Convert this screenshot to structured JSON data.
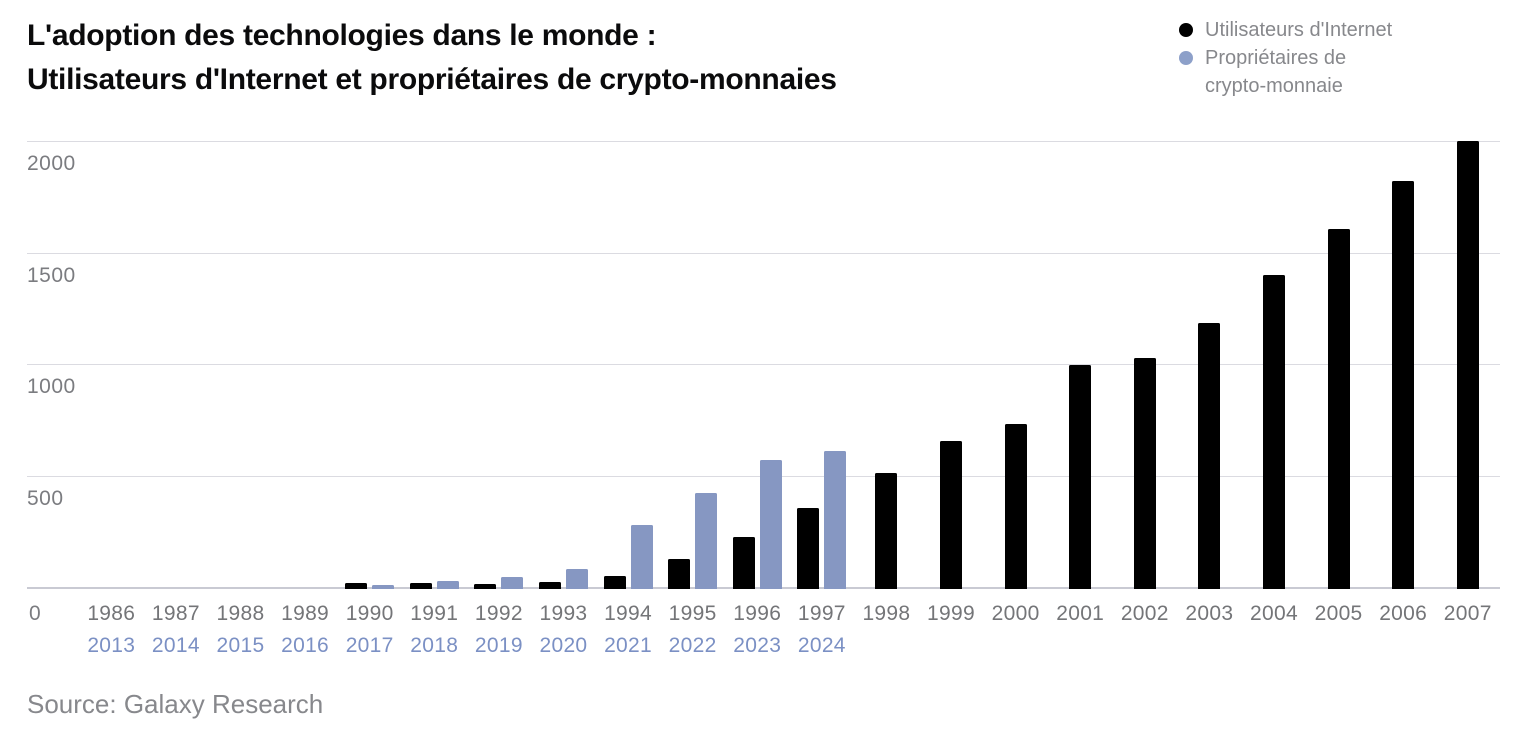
{
  "header": {
    "title": "L'adoption des technologies dans le monde :\nUtilisateurs d'Internet et propriétaires de crypto-monnaies"
  },
  "legend": {
    "items": [
      {
        "label": "Utilisateurs d'Internet",
        "color": "#000000"
      },
      {
        "label": "Propriétaires de\ncrypto-monnaie",
        "color": "#8697c2"
      }
    ]
  },
  "footer": {
    "source": "Source: Galaxy Research"
  },
  "colors": {
    "internet_bar": "#000000",
    "crypto_bar": "#8697c2",
    "crypto_year_labels": "#7b90c4",
    "axis_text": "#747578",
    "gridline": "#dbdbe1"
  },
  "chart_data": {
    "type": "bar",
    "title": "L'adoption des technologies dans le monde : Utilisateurs d'Internet et propriétaires de crypto-monnaies",
    "xlabel": "",
    "ylabel": "",
    "ylim": [
      0,
      2000
    ],
    "y_ticks": [
      0,
      500,
      1000,
      1500,
      2000
    ],
    "zero_label": "0",
    "grid": "horizontal",
    "legend_position": "top-right",
    "x_axis_rows": 2,
    "categories_internet": [
      "1986",
      "1987",
      "1988",
      "1989",
      "1990",
      "1991",
      "1992",
      "1993",
      "1994",
      "1995",
      "1996",
      "1997",
      "1998",
      "1999",
      "2000",
      "2001",
      "2002",
      "2003",
      "2004",
      "2005",
      "2006",
      "2007"
    ],
    "categories_crypto": [
      "2013",
      "2014",
      "2015",
      "2016",
      "2017",
      "2018",
      "2019",
      "2020",
      "2021",
      "2022",
      "2023",
      "2024"
    ],
    "series": [
      {
        "name": "Utilisateurs d'Internet",
        "color": "#000000",
        "values": [
          0,
          0,
          0,
          0,
          25,
          25,
          23,
          33,
          60,
          135,
          235,
          365,
          520,
          665,
          740,
          1005,
          1035,
          1195,
          1410,
          1615,
          1830,
          2010
        ]
      },
      {
        "name": "Propriétaires de crypto-monnaie",
        "color": "#8697c2",
        "values": [
          0,
          0,
          0,
          0,
          20,
          34,
          55,
          90,
          285,
          430,
          580,
          620
        ]
      }
    ],
    "source": "Source: Galaxy Research"
  }
}
